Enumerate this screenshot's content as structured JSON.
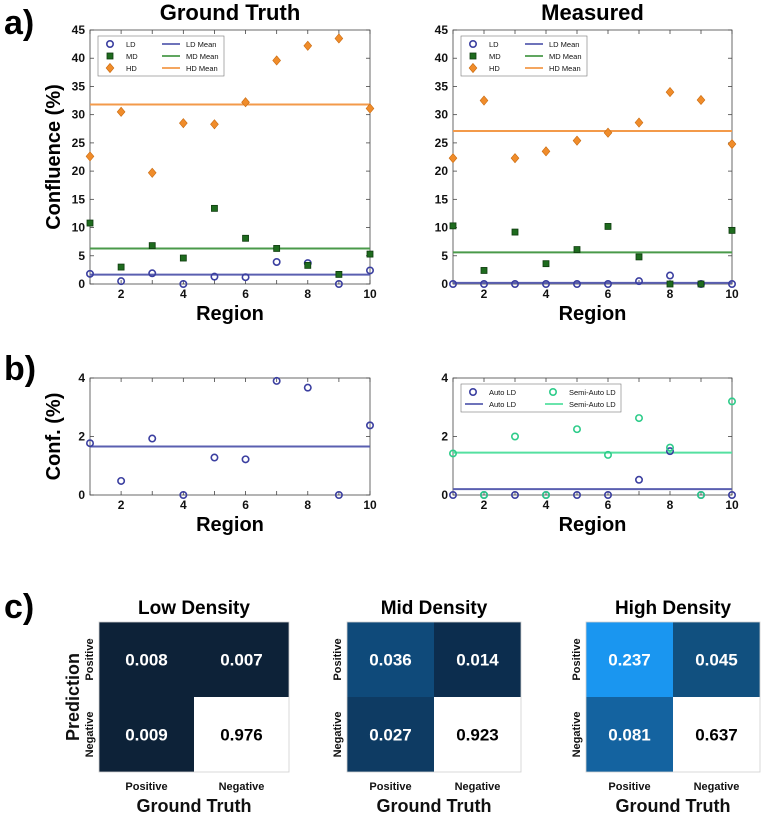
{
  "panel_labels": {
    "a": "a)",
    "b": "b)",
    "c": "c)"
  },
  "chart_data": [
    {
      "id": "a-ground-truth",
      "type": "scatter",
      "title": "Ground Truth",
      "xlabel": "Region",
      "ylabel": "Confluence (%)",
      "xlim": [
        1,
        10
      ],
      "ylim": [
        0,
        45
      ],
      "xticks": [
        "2",
        "4",
        "6",
        "8",
        "10"
      ],
      "yticks": [
        "0",
        "5",
        "10",
        "15",
        "20",
        "25",
        "30",
        "35",
        "40",
        "45"
      ],
      "x": [
        1,
        2,
        3,
        4,
        5,
        6,
        7,
        8,
        9,
        10
      ],
      "legend": [
        "LD",
        "LD Mean",
        "MD",
        "MD Mean",
        "HD",
        "HD Mean"
      ],
      "series": [
        {
          "name": "LD",
          "marker": "circle",
          "color": "#3b3fa0",
          "values": [
            1.8,
            0.5,
            1.9,
            0.0,
            1.3,
            1.2,
            3.9,
            3.7,
            0.0,
            2.4
          ]
        },
        {
          "name": "MD",
          "marker": "square",
          "color": "#1e6b1e",
          "values": [
            10.8,
            3.0,
            6.8,
            4.6,
            13.4,
            8.1,
            6.3,
            3.3,
            1.7,
            5.3
          ]
        },
        {
          "name": "HD",
          "marker": "diamond",
          "color": "#f08c2a",
          "values": [
            22.6,
            30.5,
            19.7,
            28.5,
            28.3,
            32.2,
            39.6,
            42.2,
            43.5,
            31.1
          ]
        }
      ],
      "means": [
        {
          "name": "LD Mean",
          "value": 1.65,
          "color": "#5a5fb0"
        },
        {
          "name": "MD Mean",
          "value": 6.3,
          "color": "#4a9a4a"
        },
        {
          "name": "HD Mean",
          "value": 31.8,
          "color": "#f39a4a"
        }
      ]
    },
    {
      "id": "a-measured",
      "type": "scatter",
      "title": "Measured",
      "xlabel": "Region",
      "ylabel": "",
      "xlim": [
        1,
        10
      ],
      "ylim": [
        0,
        45
      ],
      "xticks": [
        "2",
        "4",
        "6",
        "8",
        "10"
      ],
      "yticks": [
        "0",
        "5",
        "10",
        "15",
        "20",
        "25",
        "30",
        "35",
        "40",
        "45"
      ],
      "x": [
        1,
        2,
        3,
        4,
        5,
        6,
        7,
        8,
        9,
        10
      ],
      "legend": [
        "LD",
        "LD Mean",
        "MD",
        "MD Mean",
        "HD",
        "HD Mean"
      ],
      "series": [
        {
          "name": "LD",
          "marker": "circle",
          "color": "#3b3fa0",
          "values": [
            0.0,
            0.0,
            0.0,
            0.0,
            0.0,
            0.0,
            0.5,
            1.5,
            0.0,
            0.0
          ]
        },
        {
          "name": "MD",
          "marker": "square",
          "color": "#1e6b1e",
          "values": [
            10.3,
            2.4,
            9.2,
            3.6,
            6.1,
            10.2,
            4.8,
            0.0,
            0.0,
            9.5
          ]
        },
        {
          "name": "HD",
          "marker": "diamond",
          "color": "#f08c2a",
          "values": [
            22.3,
            32.5,
            22.3,
            23.5,
            25.4,
            26.8,
            28.6,
            34.0,
            32.6,
            24.8
          ]
        }
      ],
      "means": [
        {
          "name": "LD Mean",
          "value": 0.2,
          "color": "#5a5fb0"
        },
        {
          "name": "MD Mean",
          "value": 5.6,
          "color": "#4a9a4a"
        },
        {
          "name": "HD Mean",
          "value": 27.1,
          "color": "#f39a4a"
        }
      ]
    },
    {
      "id": "b-ground-truth",
      "type": "scatter",
      "title": "",
      "xlabel": "Region",
      "ylabel": "Conf. (%)",
      "xlim": [
        1,
        10
      ],
      "ylim": [
        0,
        4
      ],
      "xticks": [
        "2",
        "4",
        "6",
        "8",
        "10"
      ],
      "yticks": [
        "0",
        "2",
        "4"
      ],
      "x": [
        1,
        2,
        3,
        4,
        5,
        6,
        7,
        8,
        9,
        10
      ],
      "legend": [],
      "series": [
        {
          "name": "LD",
          "marker": "circle",
          "color": "#3b3fa0",
          "values": [
            1.77,
            0.48,
            1.93,
            0.0,
            1.28,
            1.22,
            3.9,
            3.67,
            0.0,
            2.38
          ]
        }
      ],
      "means": [
        {
          "name": "LD Mean",
          "value": 1.66,
          "color": "#5a5fb0"
        }
      ]
    },
    {
      "id": "b-measured",
      "type": "scatter",
      "title": "",
      "xlabel": "Region",
      "ylabel": "",
      "xlim": [
        1,
        10
      ],
      "ylim": [
        0,
        4
      ],
      "xticks": [
        "2",
        "4",
        "6",
        "8",
        "10"
      ],
      "yticks": [
        "0",
        "2",
        "4"
      ],
      "x": [
        1,
        2,
        3,
        4,
        5,
        6,
        7,
        8,
        9,
        10
      ],
      "legend": [
        "Auto LD",
        "Semi-Auto LD",
        "Auto LD",
        "Semi-Auto LD"
      ],
      "series": [
        {
          "name": "Auto LD",
          "marker": "circle",
          "color": "#3b3fa0",
          "values": [
            0.0,
            0.0,
            0.0,
            0.0,
            0.0,
            0.0,
            0.52,
            1.5,
            0.0,
            0.0
          ]
        },
        {
          "name": "Semi-Auto LD",
          "marker": "circle",
          "color": "#2ecc8a",
          "values": [
            1.42,
            0.0,
            2.0,
            0.0,
            2.25,
            1.37,
            2.63,
            1.62,
            0.0,
            3.2
          ]
        }
      ],
      "means": [
        {
          "name": "Auto LD",
          "value": 0.2,
          "color": "#5a5fb0"
        },
        {
          "name": "Semi-Auto LD",
          "value": 1.45,
          "color": "#55e0a0"
        }
      ]
    },
    {
      "id": "c-low",
      "type": "heatmap",
      "title": "Low Density",
      "xlabel": "Ground Truth",
      "ylabel": "Prediction",
      "col_labels": [
        "Positive",
        "Negative"
      ],
      "row_labels": [
        "Positive",
        "Negative"
      ],
      "cells": [
        [
          "0.008",
          "0.007"
        ],
        [
          "0.009",
          "0.976"
        ]
      ],
      "colors": [
        [
          "#0d2238",
          "#0d2238"
        ],
        [
          "#0d2238",
          "#ffffff"
        ]
      ],
      "text_colors": [
        [
          "#ffffff",
          "#ffffff"
        ],
        [
          "#ffffff",
          "#000000"
        ]
      ]
    },
    {
      "id": "c-mid",
      "type": "heatmap",
      "title": "Mid Density",
      "xlabel": "Ground Truth",
      "ylabel": "",
      "col_labels": [
        "Positive",
        "Negative"
      ],
      "row_labels": [
        "Positive",
        "Negative"
      ],
      "cells": [
        [
          "0.036",
          "0.014"
        ],
        [
          "0.027",
          "0.923"
        ]
      ],
      "colors": [
        [
          "#0f4a7a",
          "#0c2d4e"
        ],
        [
          "#0e3b63",
          "#ffffff"
        ]
      ],
      "text_colors": [
        [
          "#ffffff",
          "#ffffff"
        ],
        [
          "#ffffff",
          "#000000"
        ]
      ]
    },
    {
      "id": "c-high",
      "type": "heatmap",
      "title": "High Density",
      "xlabel": "Ground Truth",
      "ylabel": "",
      "col_labels": [
        "Positive",
        "Negative"
      ],
      "row_labels": [
        "Positive",
        "Negative"
      ],
      "cells": [
        [
          "0.237",
          "0.045"
        ],
        [
          "0.081",
          "0.637"
        ]
      ],
      "colors": [
        [
          "#1a96f0",
          "#11507f"
        ],
        [
          "#1463a0",
          "#ffffff"
        ]
      ],
      "text_colors": [
        [
          "#ffffff",
          "#ffffff"
        ],
        [
          "#ffffff",
          "#000000"
        ]
      ]
    }
  ]
}
